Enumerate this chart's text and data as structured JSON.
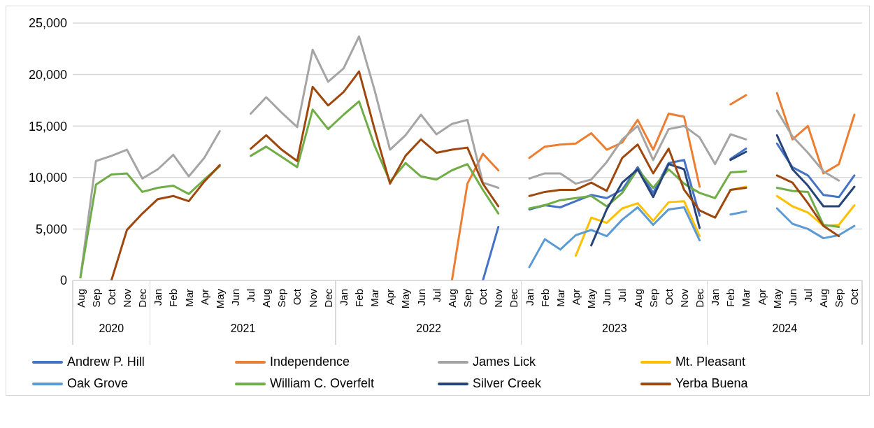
{
  "chart_data": {
    "type": "line",
    "categories": [
      "Aug",
      "Sep",
      "Oct",
      "Nov",
      "Dec",
      "Jan",
      "Feb",
      "Mar",
      "Apr",
      "May",
      "Jun",
      "Jul",
      "Aug",
      "Sep",
      "Oct",
      "Nov",
      "Dec",
      "Jan",
      "Feb",
      "Mar",
      "Apr",
      "May",
      "Jun",
      "Jul",
      "Aug",
      "Sep",
      "Oct",
      "Nov",
      "Dec",
      "Jan",
      "Feb",
      "Mar",
      "Apr",
      "May",
      "Jun",
      "Jul",
      "Aug",
      "Sep",
      "Oct",
      "Nov",
      "Dec",
      "Jan",
      "Feb",
      "Mar",
      "Apr",
      "May",
      "Jun",
      "Jul",
      "Aug",
      "Sep",
      "Oct"
    ],
    "annotations": [
      "2020",
      "2021",
      "2022",
      "2023",
      "2024"
    ],
    "series": [
      {
        "name": "Andrew P. Hill",
        "color": "#4472c4",
        "values": [
          null,
          null,
          null,
          null,
          null,
          null,
          null,
          null,
          null,
          null,
          null,
          null,
          null,
          null,
          null,
          null,
          null,
          null,
          null,
          null,
          null,
          null,
          null,
          null,
          null,
          null,
          0,
          5200,
          null,
          6900,
          7300,
          7100,
          7700,
          8300,
          8000,
          8800,
          11000,
          8500,
          11400,
          11700,
          6300,
          null,
          11800,
          12800,
          null,
          13300,
          11000,
          10200,
          8300,
          8100,
          10200
        ]
      },
      {
        "name": "Independence",
        "color": "#ed7d31",
        "values": [
          null,
          null,
          null,
          null,
          null,
          null,
          null,
          null,
          null,
          null,
          null,
          null,
          null,
          null,
          null,
          null,
          null,
          null,
          null,
          null,
          null,
          null,
          null,
          null,
          0,
          9400,
          12300,
          10700,
          null,
          11900,
          13000,
          13200,
          13300,
          14300,
          12700,
          13400,
          15600,
          12700,
          16200,
          15900,
          9100,
          null,
          17100,
          18000,
          null,
          18200,
          13700,
          15000,
          10400,
          11300,
          16100
        ]
      },
      {
        "name": "James Lick",
        "color": "#a5a5a5",
        "values": [
          300,
          11600,
          12100,
          12700,
          9900,
          10800,
          12200,
          10100,
          11900,
          14500,
          null,
          16200,
          17800,
          16300,
          14900,
          22400,
          19300,
          20600,
          23700,
          18500,
          12700,
          14100,
          16100,
          14200,
          15200,
          15600,
          9500,
          9000,
          null,
          9900,
          10400,
          10400,
          9400,
          9800,
          11500,
          13700,
          15000,
          11700,
          14700,
          15000,
          13900,
          11300,
          14200,
          13700,
          null,
          16500,
          14000,
          12400,
          10600,
          9700,
          null
        ]
      },
      {
        "name": "Mt. Pleasant",
        "color": "#ffc000",
        "values": [
          null,
          null,
          null,
          null,
          null,
          null,
          null,
          null,
          null,
          null,
          null,
          null,
          null,
          null,
          null,
          null,
          null,
          null,
          null,
          null,
          null,
          null,
          null,
          null,
          null,
          null,
          null,
          null,
          null,
          null,
          null,
          null,
          2400,
          6100,
          5600,
          7000,
          7500,
          5800,
          7600,
          7700,
          4300,
          null,
          8800,
          9100,
          null,
          8200,
          7200,
          6600,
          5300,
          5400,
          7300
        ]
      },
      {
        "name": "Oak Grove",
        "color": "#5b9bd5",
        "values": [
          null,
          null,
          null,
          null,
          null,
          null,
          null,
          null,
          null,
          null,
          null,
          null,
          null,
          null,
          null,
          null,
          null,
          null,
          null,
          null,
          null,
          null,
          null,
          null,
          null,
          null,
          null,
          null,
          null,
          1300,
          4000,
          3000,
          4400,
          4900,
          4300,
          5900,
          7100,
          5400,
          6900,
          7100,
          3900,
          null,
          6400,
          6700,
          null,
          7000,
          5500,
          5000,
          4100,
          4400,
          5300
        ]
      },
      {
        "name": "William C. Overfelt",
        "color": "#70ad47",
        "values": [
          300,
          9300,
          10300,
          10400,
          8600,
          9000,
          9200,
          8400,
          9800,
          11100,
          null,
          12100,
          13000,
          12000,
          11000,
          16600,
          14700,
          16100,
          17400,
          13100,
          9600,
          11400,
          10100,
          9800,
          10700,
          11300,
          8800,
          6500,
          null,
          7000,
          7300,
          7800,
          8000,
          8200,
          7200,
          8500,
          10800,
          9000,
          10800,
          9400,
          8500,
          8000,
          10500,
          10600,
          null,
          9000,
          8700,
          8600,
          5400,
          5200,
          null
        ]
      },
      {
        "name": "Silver Creek",
        "color": "#264478",
        "values": [
          null,
          null,
          null,
          null,
          null,
          null,
          null,
          null,
          null,
          null,
          null,
          null,
          null,
          null,
          null,
          null,
          null,
          null,
          null,
          null,
          null,
          null,
          null,
          null,
          null,
          null,
          null,
          null,
          null,
          null,
          null,
          null,
          null,
          3400,
          6900,
          9500,
          10800,
          8100,
          11300,
          10800,
          5100,
          null,
          11700,
          12500,
          null,
          14100,
          10800,
          9200,
          7200,
          7200,
          9100
        ]
      },
      {
        "name": "Yerba Buena",
        "color": "#9e480e",
        "values": [
          null,
          null,
          0,
          4900,
          6500,
          7900,
          8200,
          7700,
          9600,
          11200,
          null,
          12800,
          14100,
          12700,
          11600,
          18800,
          17000,
          18300,
          20300,
          14700,
          9400,
          12100,
          13700,
          12400,
          12700,
          12900,
          9400,
          7200,
          null,
          8200,
          8600,
          8800,
          8800,
          9500,
          8700,
          11900,
          13200,
          10400,
          12800,
          8800,
          6800,
          6100,
          8800,
          9000,
          null,
          10200,
          9500,
          7500,
          5300,
          4300,
          null
        ]
      }
    ],
    "ylim": [
      0,
      25000
    ],
    "yticks": [
      0,
      {
        "value": 5000,
        "label": "5,000"
      },
      {
        "value": 10000,
        "label": "10,000"
      },
      {
        "value": 15000,
        "label": "15,000"
      },
      {
        "value": 20000,
        "label": "20,000"
      },
      {
        "value": 25000,
        "label": "25,000"
      }
    ],
    "grid": "y",
    "legend": "bottom"
  }
}
